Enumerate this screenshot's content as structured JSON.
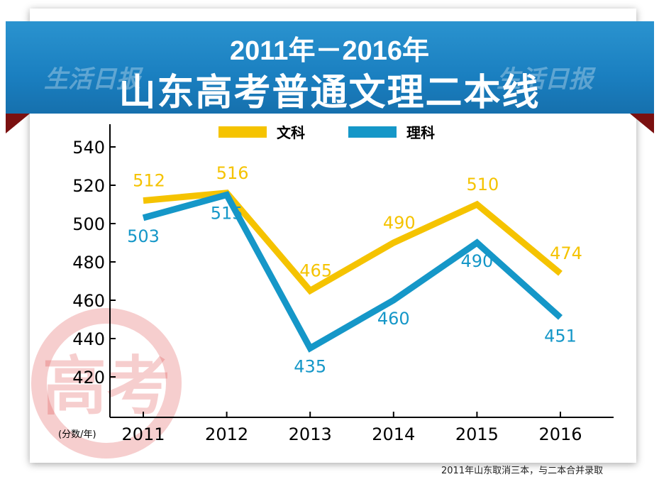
{
  "header": {
    "title_line1": "2011年－2016年",
    "title_line2": "山东高考普通文理二本线",
    "watermark": "生活日报"
  },
  "footnote": "2011年山东取消三本，与二本合并录取",
  "stamp_text": "高考",
  "chart_data": {
    "type": "line",
    "title": "2011年－2016年 山东高考普通文理二本线",
    "xlabel": "",
    "ylabel": "(分数/年)",
    "categories": [
      "2011",
      "2012",
      "2013",
      "2014",
      "2015",
      "2016"
    ],
    "yticks": [
      420,
      440,
      460,
      480,
      500,
      520,
      540
    ],
    "ylim": [
      410,
      552
    ],
    "legend_position": "top-center",
    "series": [
      {
        "name": "文科",
        "color": "#f5c300",
        "values": [
          512,
          516,
          465,
          490,
          510,
          474
        ]
      },
      {
        "name": "理科",
        "color": "#1597c8",
        "values": [
          503,
          515,
          435,
          460,
          490,
          451
        ]
      }
    ]
  }
}
